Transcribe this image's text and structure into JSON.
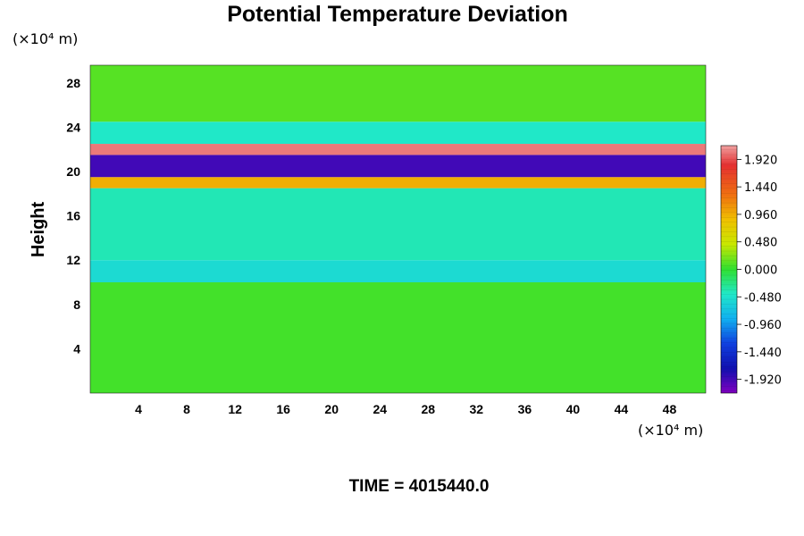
{
  "chart_data": {
    "type": "heatmap",
    "title": "Potential Temperature Deviation",
    "ylabel": "Height",
    "xlabel": "",
    "x_unit": "(×10⁴ m)",
    "y_unit": "(×10⁴ m)",
    "xlim": [
      0,
      51
    ],
    "ylim": [
      0,
      29.6
    ],
    "x_ticks": [
      "4",
      "8",
      "12",
      "16",
      "20",
      "24",
      "28",
      "32",
      "36",
      "40",
      "44",
      "48"
    ],
    "y_ticks": [
      "4",
      "8",
      "12",
      "16",
      "20",
      "24",
      "28"
    ],
    "colorbar": {
      "range": [
        -2.16,
        2.16
      ],
      "ticks": [
        "1.920",
        "1.440",
        "0.960",
        "0.480",
        "0.000",
        "-0.480",
        "-0.960",
        "-1.440",
        "-1.920"
      ]
    },
    "footer": "TIME = 4015440.0",
    "field_bands": [
      {
        "y_range": [
          0,
          10
        ],
        "value": 0.05
      },
      {
        "y_range": [
          10,
          12
        ],
        "value": -0.5
      },
      {
        "y_range": [
          12,
          18.5
        ],
        "value": -0.35
      },
      {
        "y_range": [
          18.5,
          19.5
        ],
        "value": 0.9
      },
      {
        "y_range": [
          19.5,
          21.5
        ],
        "value": -1.9
      },
      {
        "y_range": [
          21.5,
          22.5
        ],
        "value": 2.0
      },
      {
        "y_range": [
          22.5,
          24.5
        ],
        "value": -0.4
      },
      {
        "y_range": [
          24.5,
          29.6
        ],
        "value": 0.1
      }
    ]
  }
}
